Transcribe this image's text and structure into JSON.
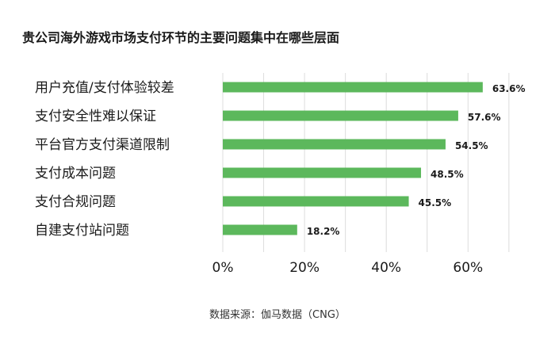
{
  "chart_data": {
    "type": "bar",
    "orientation": "horizontal",
    "title": "贵公司海外游戏市场支付环节的主要问题集中在哪些层面",
    "source": "数据来源：伽马数据（CNG）",
    "categories": [
      "用户充值/支付体验较差",
      "支付安全性难以保证",
      "平台官方支付渠道限制",
      "支付成本问题",
      "支付合规问题",
      "自建支付站问题"
    ],
    "values": [
      63.6,
      57.6,
      54.5,
      48.5,
      45.5,
      18.2
    ],
    "value_labels": [
      "63.6%",
      "57.6%",
      "54.5%",
      "48.5%",
      "45.5%",
      "18.2%"
    ],
    "x_ticks": [
      0,
      20,
      40,
      60
    ],
    "x_tick_labels": [
      "0%",
      "20%",
      "40%",
      "60%"
    ],
    "xlim": [
      0,
      70
    ],
    "grid": true,
    "bar_color": "#5cb85c",
    "legend": "none"
  }
}
